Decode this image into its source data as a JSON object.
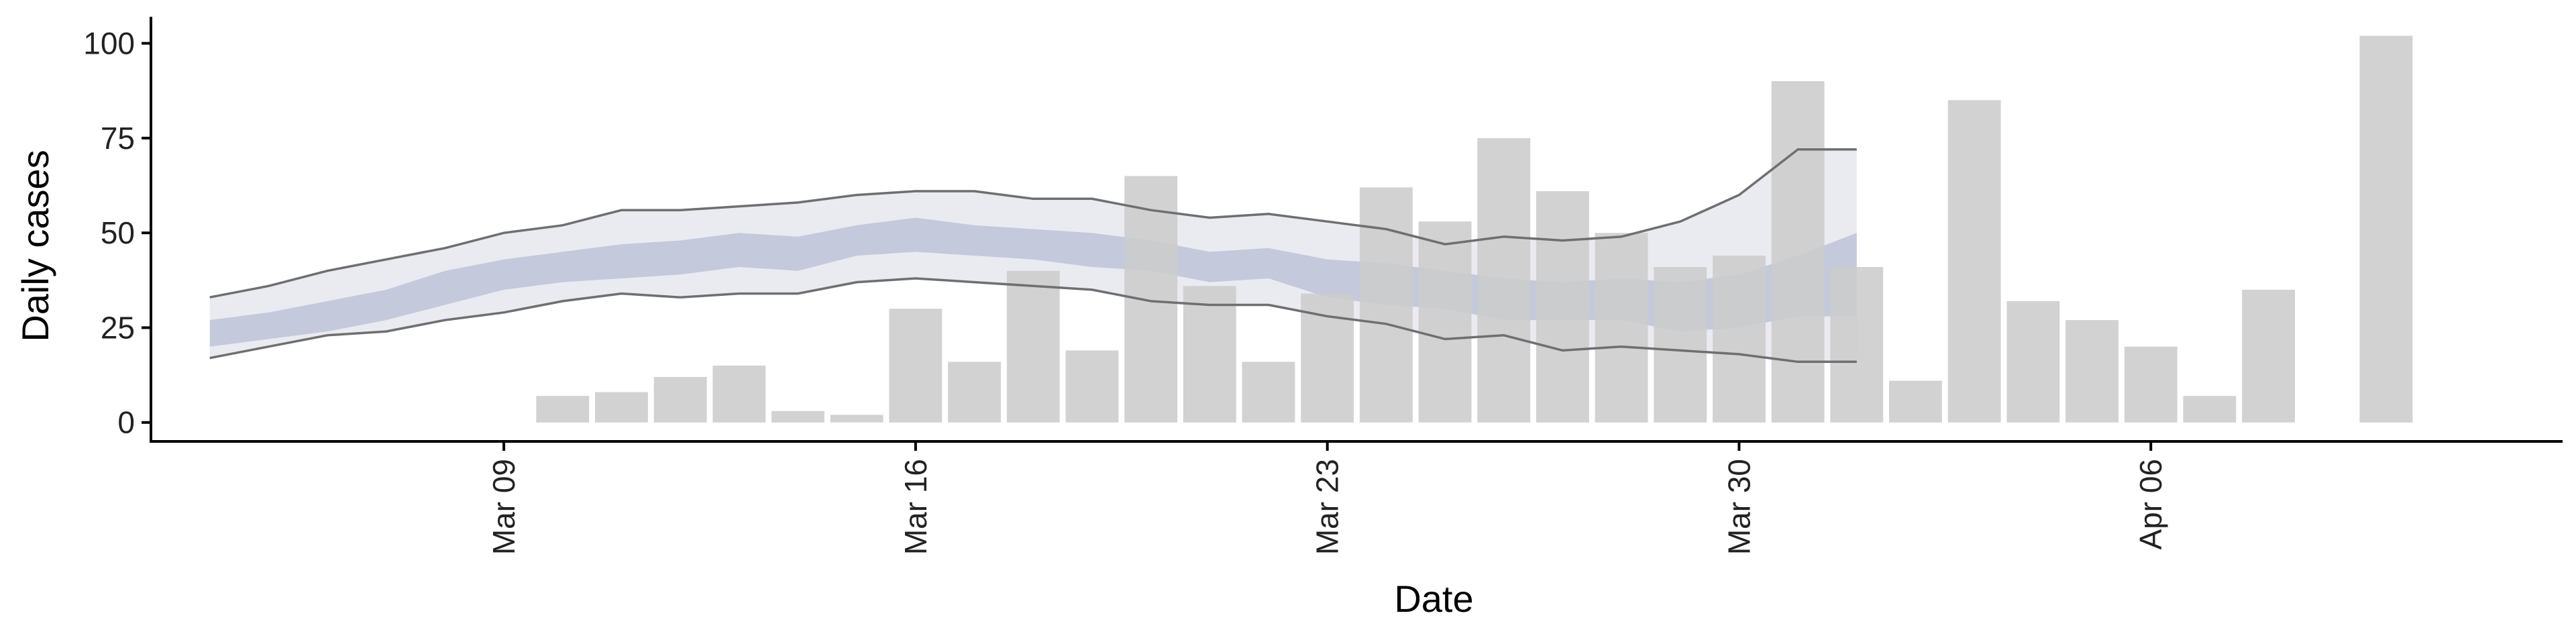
{
  "chart_data": {
    "type": "bar",
    "xlabel": "Date",
    "ylabel": "Daily cases",
    "x_tick_labels": [
      "Mar 09",
      "Mar 16",
      "Mar 23",
      "Mar 30",
      "Apr 06"
    ],
    "x_tick_dates": [
      "2020-03-09",
      "2020-03-16",
      "2020-03-23",
      "2020-03-30",
      "2020-04-06"
    ],
    "y_ticks": [
      0,
      25,
      50,
      75,
      100
    ],
    "ylim": [
      -5,
      107
    ],
    "xlim": [
      "2020-03-03",
      "2020-04-13"
    ],
    "grid": false,
    "colors": {
      "bars": "#cccccc",
      "outer_band": "#dcdde8",
      "inner_band": "#b3bad2",
      "band_edge_lines": "#6f6f6f",
      "axis": "#000000"
    },
    "bars": [
      {
        "date": "2020-03-10",
        "value": 7
      },
      {
        "date": "2020-03-11",
        "value": 8
      },
      {
        "date": "2020-03-12",
        "value": 12
      },
      {
        "date": "2020-03-13",
        "value": 15
      },
      {
        "date": "2020-03-14",
        "value": 3
      },
      {
        "date": "2020-03-15",
        "value": 2
      },
      {
        "date": "2020-03-16",
        "value": 30
      },
      {
        "date": "2020-03-17",
        "value": 16
      },
      {
        "date": "2020-03-18",
        "value": 40
      },
      {
        "date": "2020-03-19",
        "value": 19
      },
      {
        "date": "2020-03-20",
        "value": 65
      },
      {
        "date": "2020-03-21",
        "value": 36
      },
      {
        "date": "2020-03-22",
        "value": 16
      },
      {
        "date": "2020-03-23",
        "value": 34
      },
      {
        "date": "2020-03-24",
        "value": 62
      },
      {
        "date": "2020-03-25",
        "value": 53
      },
      {
        "date": "2020-03-26",
        "value": 75
      },
      {
        "date": "2020-03-27",
        "value": 61
      },
      {
        "date": "2020-03-28",
        "value": 50
      },
      {
        "date": "2020-03-29",
        "value": 41
      },
      {
        "date": "2020-03-30",
        "value": 44
      },
      {
        "date": "2020-03-31",
        "value": 90
      },
      {
        "date": "2020-04-01",
        "value": 41
      },
      {
        "date": "2020-04-02",
        "value": 11
      },
      {
        "date": "2020-04-03",
        "value": 85
      },
      {
        "date": "2020-04-04",
        "value": 32
      },
      {
        "date": "2020-04-05",
        "value": 27
      },
      {
        "date": "2020-04-06",
        "value": 20
      },
      {
        "date": "2020-04-07",
        "value": 7
      },
      {
        "date": "2020-04-08",
        "value": 35
      },
      {
        "date": "2020-04-10",
        "value": 102
      }
    ],
    "band_dates": [
      "2020-03-04",
      "2020-03-05",
      "2020-03-06",
      "2020-03-07",
      "2020-03-08",
      "2020-03-09",
      "2020-03-10",
      "2020-03-11",
      "2020-03-12",
      "2020-03-13",
      "2020-03-14",
      "2020-03-15",
      "2020-03-16",
      "2020-03-17",
      "2020-03-18",
      "2020-03-19",
      "2020-03-20",
      "2020-03-21",
      "2020-03-22",
      "2020-03-23",
      "2020-03-24",
      "2020-03-25",
      "2020-03-26",
      "2020-03-27",
      "2020-03-28",
      "2020-03-29",
      "2020-03-30",
      "2020-03-31",
      "2020-04-01"
    ],
    "outer_band": {
      "lower": [
        17,
        20,
        23,
        24,
        27,
        29,
        32,
        34,
        33,
        34,
        34,
        37,
        38,
        37,
        36,
        35,
        32,
        31,
        31,
        28,
        26,
        22,
        23,
        19,
        20,
        19,
        18,
        16,
        16
      ],
      "upper": [
        33,
        36,
        40,
        43,
        46,
        50,
        52,
        56,
        56,
        57,
        58,
        60,
        61,
        61,
        59,
        59,
        56,
        54,
        55,
        53,
        51,
        47,
        49,
        48,
        49,
        53,
        60,
        72,
        72
      ]
    },
    "inner_band": {
      "lower": [
        20,
        22,
        24,
        27,
        31,
        35,
        37,
        38,
        39,
        41,
        40,
        44,
        45,
        44,
        43,
        41,
        40,
        37,
        38,
        33,
        31,
        30,
        27,
        27,
        27,
        24,
        25,
        28,
        28
      ],
      "upper": [
        27,
        29,
        32,
        35,
        40,
        43,
        45,
        47,
        48,
        50,
        49,
        52,
        54,
        52,
        51,
        50,
        48,
        45,
        46,
        43,
        42,
        40,
        38,
        37,
        38,
        37,
        39,
        44,
        50
      ]
    }
  }
}
